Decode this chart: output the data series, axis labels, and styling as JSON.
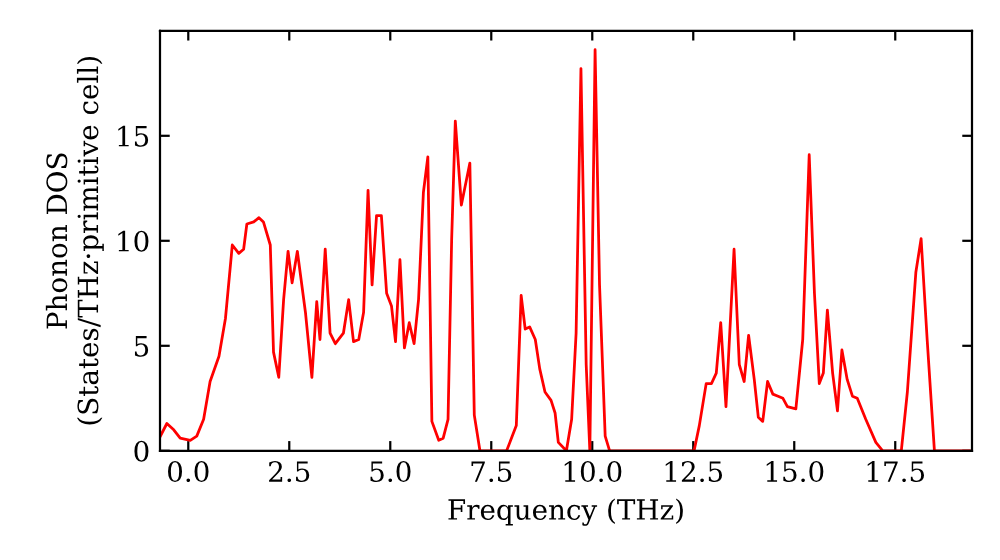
{
  "chart_data": {
    "type": "line",
    "xlabel": "Frequency (THz)",
    "ylabel": "Phonon DOS\n(States/THz·primitive cell)",
    "xlim": [
      -0.7,
      19.4
    ],
    "ylim": [
      0,
      20
    ],
    "xticks": [
      {
        "value": 0,
        "label": "0.0"
      },
      2.5,
      {
        "value": 5,
        "label": "5.0"
      },
      7.5,
      {
        "value": 10,
        "label": "10.0"
      },
      12.5,
      {
        "value": 15,
        "label": "15.0"
      },
      17.5
    ],
    "yticks": [
      0,
      5,
      10,
      15
    ],
    "grid": false,
    "legend": false,
    "marker": "none",
    "line_style": "solid",
    "series": [
      {
        "color": "#ff0000",
        "x": [
          -0.69,
          -0.53,
          -0.36,
          -0.2,
          0.05,
          0.21,
          0.38,
          0.54,
          0.76,
          0.92,
          1.09,
          1.25,
          1.37,
          1.45,
          1.62,
          1.75,
          1.86,
          2.03,
          2.11,
          2.24,
          2.36,
          2.47,
          2.57,
          2.7,
          2.9,
          3.06,
          3.18,
          3.26,
          3.39,
          3.51,
          3.64,
          3.84,
          3.97,
          4.09,
          4.22,
          4.34,
          4.45,
          4.55,
          4.66,
          4.78,
          4.91,
          5.03,
          5.13,
          5.24,
          5.35,
          5.47,
          5.59,
          5.7,
          5.82,
          5.93,
          6.03,
          6.2,
          6.31,
          6.43,
          6.52,
          6.61,
          6.76,
          6.97,
          7.08,
          7.22,
          7.88,
          8.12,
          8.24,
          8.34,
          8.45,
          8.59,
          8.7,
          8.83,
          8.98,
          9.08,
          9.16,
          9.36,
          9.49,
          9.6,
          9.72,
          9.85,
          9.94,
          10.07,
          10.18,
          10.32,
          10.43,
          12.52,
          12.65,
          12.82,
          12.95,
          13.07,
          13.18,
          13.31,
          13.51,
          13.64,
          13.76,
          13.87,
          14.01,
          14.11,
          14.22,
          14.34,
          14.47,
          14.6,
          14.72,
          14.83,
          15.04,
          15.21,
          15.37,
          15.5,
          15.62,
          15.72,
          15.82,
          15.95,
          16.07,
          16.18,
          16.31,
          16.44,
          16.56,
          16.77,
          17.02,
          17.19,
          17.65,
          17.8,
          18.01,
          18.14,
          18.29,
          18.47,
          19.33
        ],
        "values": [
          0.7,
          1.3,
          1.0,
          0.6,
          0.5,
          0.7,
          1.5,
          3.3,
          4.5,
          6.3,
          9.8,
          9.4,
          9.6,
          10.8,
          10.9,
          11.1,
          10.9,
          9.8,
          4.7,
          3.5,
          7.2,
          9.5,
          8.0,
          9.5,
          6.6,
          3.5,
          7.1,
          5.3,
          9.6,
          5.6,
          5.1,
          5.6,
          7.2,
          5.2,
          5.3,
          6.6,
          12.4,
          7.9,
          11.2,
          11.2,
          7.5,
          6.9,
          5.2,
          9.1,
          4.9,
          6.1,
          5.1,
          7.2,
          12.3,
          14.0,
          1.4,
          0.5,
          0.6,
          1.5,
          10.1,
          15.7,
          11.7,
          13.7,
          1.7,
          0,
          0,
          1.2,
          7.4,
          5.8,
          5.9,
          5.3,
          3.9,
          2.8,
          2.4,
          1.8,
          0.4,
          0,
          1.5,
          5.6,
          18.2,
          4.1,
          0,
          19.1,
          7.9,
          0.7,
          0,
          0,
          1.2,
          3.2,
          3.2,
          3.7,
          6.1,
          2.1,
          9.6,
          4.1,
          3.3,
          5.5,
          3.4,
          1.6,
          1.4,
          3.3,
          2.7,
          2.6,
          2.5,
          2.1,
          2.0,
          5.3,
          14.1,
          7.5,
          3.2,
          3.7,
          6.7,
          3.7,
          1.9,
          4.8,
          3.4,
          2.6,
          2.5,
          1.5,
          0.4,
          0,
          0,
          2.8,
          8.5,
          10.1,
          5.3,
          0,
          0
        ]
      }
    ]
  }
}
